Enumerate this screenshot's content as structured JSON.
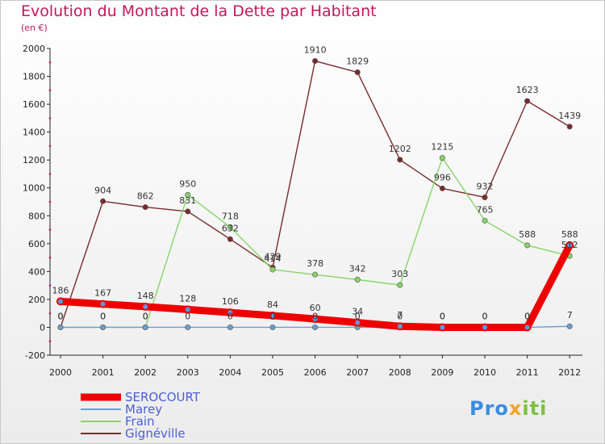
{
  "title": "Evolution du Montant de la Dette par Habitant",
  "subtitle": "(en €)",
  "logo": {
    "part1": "Pro",
    "part2": "x",
    "part3": "iti"
  },
  "colors": {
    "title": "#c2185b",
    "legend_text": "#4a5fd8",
    "axis": "#222222"
  },
  "chart_data": {
    "type": "line",
    "title": "Evolution du Montant de la Dette par Habitant",
    "subtitle": "(en €)",
    "xlabel": "",
    "ylabel": "",
    "x": [
      "2000",
      "2001",
      "2002",
      "2003",
      "2004",
      "2005",
      "2006",
      "2007",
      "2008",
      "2009",
      "2010",
      "2011",
      "2012"
    ],
    "ylim": [
      -200,
      2000
    ],
    "yticks": [
      -200,
      0,
      200,
      400,
      600,
      800,
      1000,
      1200,
      1400,
      1600,
      1800,
      2000
    ],
    "grid": false,
    "legend_position": "bottom-left",
    "series": [
      {
        "name": "SEROCOURT",
        "color": "#ee0000",
        "values": [
          186,
          167,
          148,
          128,
          106,
          84,
          60,
          34,
          7,
          0,
          0,
          0,
          588
        ],
        "labels": [
          "186",
          "167",
          "148",
          "128",
          "106",
          "84",
          "60",
          "34",
          "7",
          "0",
          "0",
          "0",
          "588"
        ]
      },
      {
        "name": "Marey",
        "color": "#6a9fd0",
        "values": [
          0,
          0,
          0,
          0,
          0,
          0,
          0,
          0,
          0,
          0,
          0,
          0,
          7
        ],
        "labels": [
          "0",
          "0",
          "0",
          "0",
          "0",
          "0",
          "0",
          "0",
          "0",
          "0",
          "0",
          "0",
          "7"
        ]
      },
      {
        "name": "Frain",
        "color": "#88d46a",
        "values": [
          0,
          0,
          0,
          950,
          718,
          414,
          378,
          342,
          303,
          1215,
          765,
          588,
          512
        ],
        "labels": [
          "0",
          "0",
          "0",
          "950",
          "718",
          "414",
          "378",
          "342",
          "303",
          "1215",
          "765",
          "588",
          "512"
        ]
      },
      {
        "name": "Gignéville",
        "color": "#7a2a2a",
        "values": [
          0,
          904,
          862,
          831,
          632,
          429,
          1910,
          1829,
          1202,
          996,
          932,
          1623,
          1439
        ],
        "labels": [
          "0",
          "904",
          "862",
          "831",
          "632",
          "429",
          "1910",
          "1829",
          "1202",
          "996",
          "932",
          "1623",
          "1439"
        ]
      }
    ]
  }
}
